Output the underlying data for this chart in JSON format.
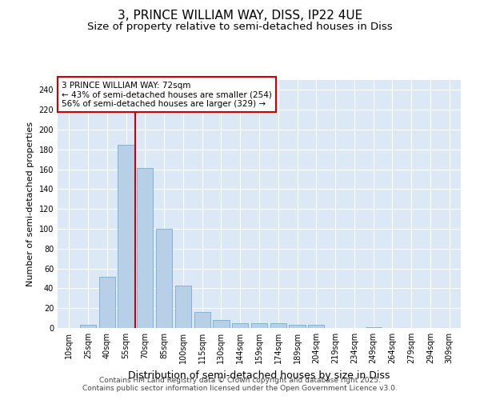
{
  "title": "3, PRINCE WILLIAM WAY, DISS, IP22 4UE",
  "subtitle": "Size of property relative to semi-detached houses in Diss",
  "xlabel": "Distribution of semi-detached houses by size in Diss",
  "ylabel": "Number of semi-detached properties",
  "categories": [
    "10sqm",
    "25sqm",
    "40sqm",
    "55sqm",
    "70sqm",
    "85sqm",
    "100sqm",
    "115sqm",
    "130sqm",
    "144sqm",
    "159sqm",
    "174sqm",
    "189sqm",
    "204sqm",
    "219sqm",
    "234sqm",
    "249sqm",
    "264sqm",
    "279sqm",
    "294sqm",
    "309sqm"
  ],
  "values": [
    0,
    3,
    52,
    185,
    161,
    100,
    43,
    16,
    8,
    5,
    5,
    5,
    3,
    3,
    0,
    0,
    1,
    0,
    0,
    0,
    0
  ],
  "bar_color": "#b8cfe8",
  "bar_edge_color": "#7aaad0",
  "vline_x": 3.5,
  "vline_color": "#cc0000",
  "annotation_text": "3 PRINCE WILLIAM WAY: 72sqm\n← 43% of semi-detached houses are smaller (254)\n56% of semi-detached houses are larger (329) →",
  "annotation_box_color": "#cc0000",
  "ylim": [
    0,
    250
  ],
  "yticks": [
    0,
    20,
    40,
    60,
    80,
    100,
    120,
    140,
    160,
    180,
    200,
    220,
    240
  ],
  "bg_color": "#dce8f5",
  "footer": "Contains HM Land Registry data © Crown copyright and database right 2025.\nContains public sector information licensed under the Open Government Licence v3.0.",
  "title_fontsize": 11,
  "subtitle_fontsize": 9.5,
  "xlabel_fontsize": 9,
  "ylabel_fontsize": 8,
  "tick_fontsize": 7,
  "footer_fontsize": 6.5,
  "ann_fontsize": 7.5
}
